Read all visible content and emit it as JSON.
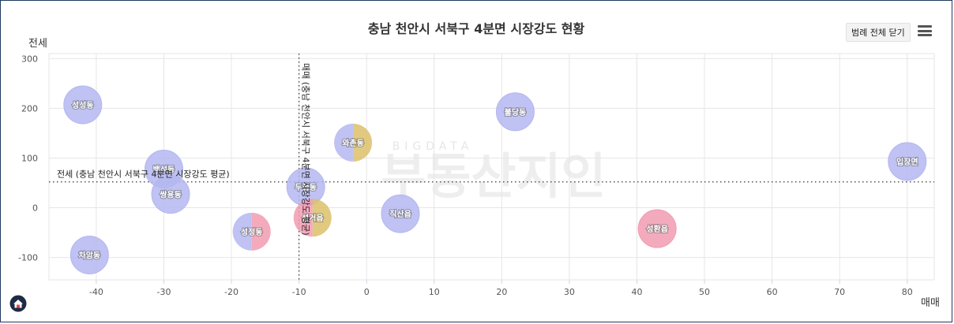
{
  "chart_data": {
    "type": "bubble",
    "title": "충남 천안시 서북구 4분면 시장강도 현황",
    "xlabel": "매매",
    "ylabel": "전세",
    "xlim": [
      -47,
      84
    ],
    "ylim": [
      -145,
      310
    ],
    "xticks": [
      -40,
      -30,
      -20,
      -10,
      0,
      10,
      20,
      30,
      40,
      50,
      60,
      70,
      80
    ],
    "yticks": [
      -100,
      0,
      100,
      200,
      300
    ],
    "grid": true,
    "reference_lines": {
      "x": {
        "value": -10,
        "label": "매매 (충남 천안시 서북구 4분면 시장강도 평균)"
      },
      "y": {
        "value": 52,
        "label": "전세 (충남 천안시 서북구 4분면 시장강도 평균)"
      }
    },
    "points": [
      {
        "name": "성성동",
        "x": -42,
        "y": 207,
        "colors": [
          "#b4b7f0"
        ]
      },
      {
        "name": "백석동",
        "x": -30,
        "y": 78,
        "colors": [
          "#b4b7f0"
        ]
      },
      {
        "name": "쌍용동",
        "x": -29,
        "y": 27,
        "colors": [
          "#b4b7f0"
        ]
      },
      {
        "name": "차암동",
        "x": -41,
        "y": -95,
        "colors": [
          "#b4b7f0"
        ]
      },
      {
        "name": "성정동",
        "x": -17,
        "y": -48,
        "colors": [
          "#b4b7f0",
          "#f29bb1"
        ]
      },
      {
        "name": "두정동",
        "x": -9,
        "y": 42,
        "colors": [
          "#b4b7f0"
        ]
      },
      {
        "name": "성거읍",
        "x": -8,
        "y": -20,
        "colors": [
          "#f29bb1",
          "#dcc06a"
        ]
      },
      {
        "name": "와촌동",
        "x": -2,
        "y": 131,
        "colors": [
          "#b4b7f0",
          "#dcc06a"
        ]
      },
      {
        "name": "직산읍",
        "x": 5,
        "y": -12,
        "colors": [
          "#b4b7f0"
        ]
      },
      {
        "name": "불당동",
        "x": 22,
        "y": 193,
        "colors": [
          "#b4b7f0"
        ]
      },
      {
        "name": "성환읍",
        "x": 43,
        "y": -42,
        "colors": [
          "#f29bb1"
        ]
      },
      {
        "name": "입장면",
        "x": 80,
        "y": 93,
        "colors": [
          "#b4b7f0"
        ]
      }
    ]
  },
  "watermark": {
    "sub": "BIGDATA",
    "main": "부동산지인"
  },
  "ui": {
    "legend_toggle": "범례 전체 닫기",
    "menu_icon": "hamburger-menu-icon",
    "logo_icon": "house-logo-icon"
  }
}
